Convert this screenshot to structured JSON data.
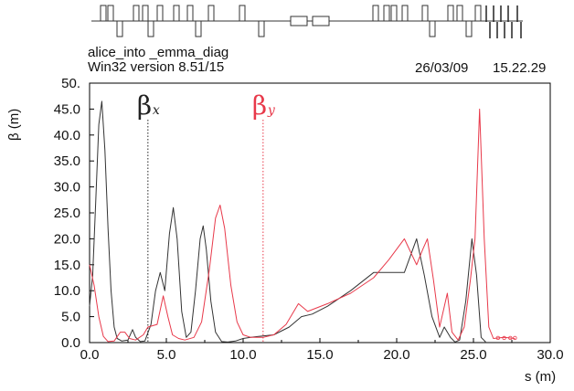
{
  "header": {
    "file_name": "alice_into _emma_diag",
    "version": "Win32 version 8.51/15",
    "date": "26/03/09",
    "time": "15.22.29"
  },
  "colors": {
    "beta_x": "#333333",
    "beta_y": "#e8394a",
    "axis": "#000000"
  },
  "chart_data": {
    "type": "line",
    "ylabel": "β  (m)",
    "xlabel": "s (m)",
    "xlim": [
      0,
      30
    ],
    "ylim": [
      0,
      50
    ],
    "x_ticks": [
      "0.0",
      "5.0",
      "10.0",
      "15.0",
      "20.0",
      "25.0",
      "30.0"
    ],
    "y_ticks": [
      "0.0",
      "5.0",
      "10.0",
      "15.0",
      "20.0",
      "25.0",
      "30.0",
      "35.0",
      "40.0",
      "45.0",
      "50."
    ],
    "grid": false,
    "markers": [
      {
        "label": "β",
        "sub": "x",
        "s": 3.8,
        "color": "#222222"
      },
      {
        "label": "β",
        "sub": "y",
        "s": 11.3,
        "color": "#e8394a"
      }
    ],
    "series": [
      {
        "name": "βx",
        "color": "#333333",
        "points": [
          [
            0.0,
            7
          ],
          [
            0.2,
            13
          ],
          [
            0.4,
            27
          ],
          [
            0.6,
            42
          ],
          [
            0.8,
            46.5
          ],
          [
            1.0,
            37
          ],
          [
            1.2,
            22
          ],
          [
            1.4,
            10
          ],
          [
            1.6,
            3
          ],
          [
            1.8,
            0.8
          ],
          [
            2.1,
            0.3
          ],
          [
            2.5,
            0.5
          ],
          [
            2.8,
            2.5
          ],
          [
            3.0,
            1.0
          ],
          [
            3.3,
            0.2
          ],
          [
            3.6,
            0.3
          ],
          [
            4.0,
            3.5
          ],
          [
            4.3,
            10
          ],
          [
            4.6,
            13.5
          ],
          [
            4.9,
            10
          ],
          [
            5.2,
            21
          ],
          [
            5.45,
            26
          ],
          [
            5.7,
            20
          ],
          [
            6.0,
            6
          ],
          [
            6.3,
            1.0
          ],
          [
            6.6,
            2
          ],
          [
            6.9,
            10
          ],
          [
            7.2,
            20
          ],
          [
            7.4,
            22.5
          ],
          [
            7.6,
            18
          ],
          [
            7.9,
            8
          ],
          [
            8.2,
            2
          ],
          [
            8.6,
            0.2
          ],
          [
            9.0,
            0.1
          ],
          [
            9.5,
            0.3
          ],
          [
            10.0,
            0.8
          ],
          [
            10.5,
            1.0
          ],
          [
            11.0,
            1.2
          ],
          [
            12.0,
            1.5
          ],
          [
            13.0,
            3
          ],
          [
            13.8,
            5
          ],
          [
            14.5,
            5.5
          ],
          [
            15.5,
            7
          ],
          [
            17.0,
            10
          ],
          [
            18.5,
            13.5
          ],
          [
            19.5,
            13.5
          ],
          [
            20.5,
            13.5
          ],
          [
            21.3,
            20
          ],
          [
            21.8,
            13
          ],
          [
            22.3,
            5
          ],
          [
            22.8,
            1
          ],
          [
            23.1,
            3
          ],
          [
            23.5,
            1
          ],
          [
            23.8,
            0.1
          ],
          [
            24.1,
            0.5
          ],
          [
            24.5,
            8
          ],
          [
            24.9,
            20
          ],
          [
            25.2,
            13
          ],
          [
            25.5,
            1
          ],
          [
            25.8,
            0.1
          ]
        ]
      },
      {
        "name": "βy",
        "color": "#e8394a",
        "points": [
          [
            0.0,
            15
          ],
          [
            0.3,
            11
          ],
          [
            0.6,
            5
          ],
          [
            0.9,
            1.2
          ],
          [
            1.2,
            0.2
          ],
          [
            1.6,
            0.3
          ],
          [
            2.0,
            2
          ],
          [
            2.3,
            2
          ],
          [
            2.6,
            0.8
          ],
          [
            3.0,
            0.5
          ],
          [
            3.5,
            1.5
          ],
          [
            3.8,
            3
          ],
          [
            4.4,
            3.5
          ],
          [
            4.8,
            9
          ],
          [
            5.1,
            5
          ],
          [
            5.4,
            1.5
          ],
          [
            5.8,
            0.8
          ],
          [
            6.2,
            0.5
          ],
          [
            6.8,
            1.0
          ],
          [
            7.3,
            4
          ],
          [
            7.8,
            14
          ],
          [
            8.2,
            24
          ],
          [
            8.5,
            26.5
          ],
          [
            8.8,
            22
          ],
          [
            9.2,
            11
          ],
          [
            9.6,
            4
          ],
          [
            10.0,
            1.5
          ],
          [
            10.5,
            1.0
          ],
          [
            11.3,
            1.0
          ],
          [
            12.0,
            1.5
          ],
          [
            12.8,
            3.5
          ],
          [
            13.6,
            7.5
          ],
          [
            14.2,
            6
          ],
          [
            15.5,
            7.5
          ],
          [
            17.0,
            9.5
          ],
          [
            18.5,
            12.5
          ],
          [
            19.5,
            16
          ],
          [
            20.5,
            20
          ],
          [
            21.3,
            15
          ],
          [
            21.7,
            18
          ],
          [
            22.0,
            20
          ],
          [
            22.4,
            12
          ],
          [
            22.8,
            3
          ],
          [
            23.3,
            9.5
          ],
          [
            23.6,
            2
          ],
          [
            24.0,
            0.5
          ],
          [
            24.4,
            3
          ],
          [
            24.8,
            12
          ],
          [
            25.1,
            20
          ],
          [
            25.4,
            45
          ],
          [
            25.7,
            20
          ],
          [
            26.0,
            3
          ],
          [
            26.3,
            0.8
          ],
          [
            27.0,
            1.0
          ],
          [
            27.7,
            0.8
          ]
        ]
      }
    ]
  }
}
